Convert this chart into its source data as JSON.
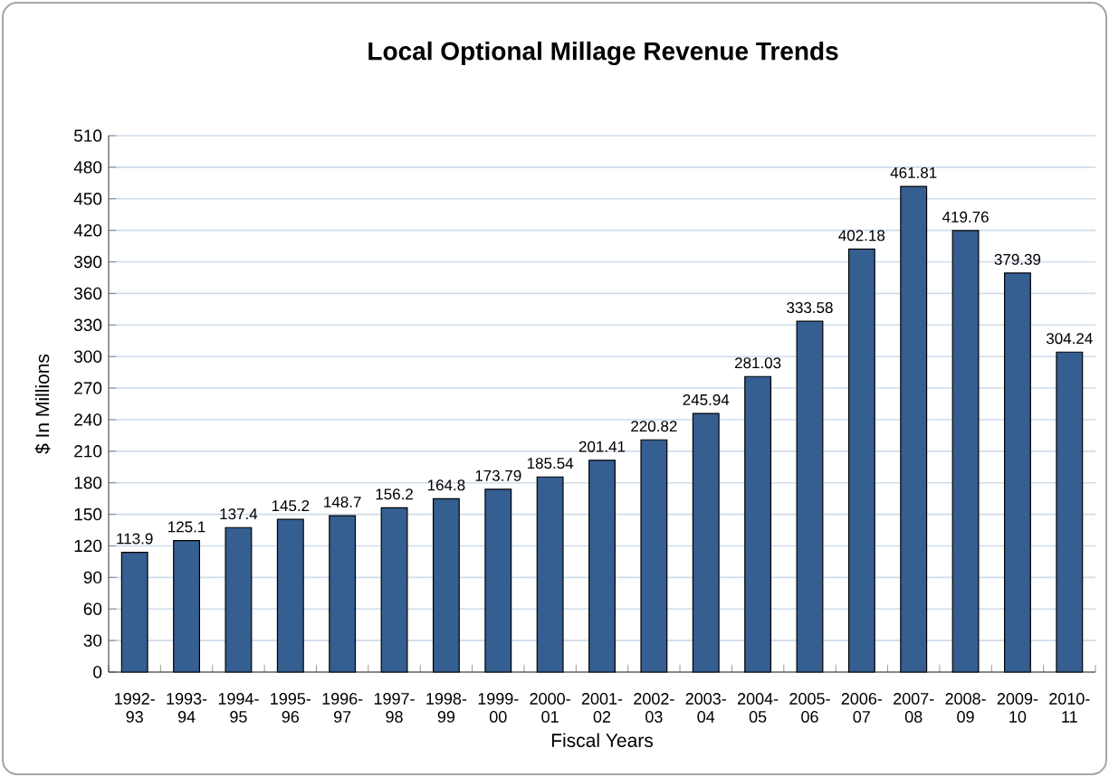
{
  "chart_data": {
    "type": "bar",
    "title": "Local Optional Millage Revenue Trends",
    "xlabel": "Fiscal Years",
    "ylabel": "$ In Millions",
    "categories": [
      "1992-93",
      "1993-94",
      "1994-95",
      "1995-96",
      "1996-97",
      "1997-98",
      "1998-99",
      "1999-00",
      "2000-01",
      "2001-02",
      "2002-03",
      "2003-04",
      "2004-05",
      "2005-06",
      "2006-07",
      "2007-08",
      "2008-09",
      "2009-10",
      "2010-11"
    ],
    "values": [
      113.9,
      125.1,
      137.4,
      145.2,
      148.7,
      156.2,
      164.8,
      173.79,
      185.54,
      201.41,
      220.82,
      245.94,
      281.03,
      333.58,
      402.18,
      461.81,
      419.76,
      379.39,
      304.24
    ],
    "color": "#355e91",
    "ylim": [
      0,
      510
    ],
    "yticks": [
      0,
      30,
      60,
      90,
      120,
      150,
      180,
      210,
      240,
      270,
      300,
      330,
      360,
      390,
      420,
      450,
      480,
      510
    ],
    "grid": "y",
    "data_labels": true
  }
}
